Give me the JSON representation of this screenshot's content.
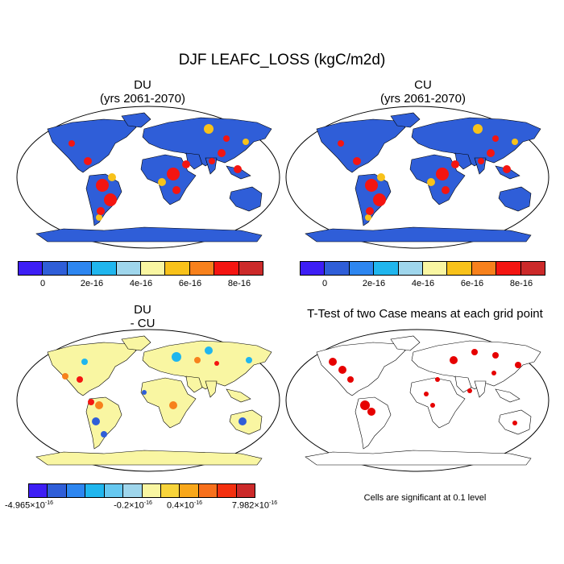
{
  "main_title": "DJF LEAFC_LOSS (kgC/m2d)",
  "panels": {
    "du": {
      "title": "DU",
      "subtitle": "(yrs 2061-2070)"
    },
    "cu": {
      "title": "CU",
      "subtitle": "(yrs 2061-2070)"
    },
    "diff": {
      "title": "DU",
      "subtitle": "- CU"
    },
    "ttest": {
      "title": "T-Test of two Case means at each grid point",
      "note": "Cells are significant at 0.1 level"
    }
  },
  "colorbar_top": {
    "colors": [
      "#3d1ef5",
      "#2f5ed8",
      "#2d86f0",
      "#20b6ee",
      "#9fd6ec",
      "#f9f6a2",
      "#f8c21a",
      "#f7811c",
      "#f41511",
      "#cc2a2a"
    ],
    "labels": [
      "0",
      "2e-16",
      "4e-16",
      "6e-16",
      "8e-16"
    ]
  },
  "colorbar_diff": {
    "colors": [
      "#3d1ef5",
      "#2f5ed8",
      "#2d86f0",
      "#20b6ee",
      "#66c8f0",
      "#9fd6ec",
      "#f9f6a2",
      "#f8d43a",
      "#f8a71a",
      "#f7701c",
      "#f4300f",
      "#cc2a2a"
    ],
    "labels": {
      "min": "-4.965",
      "neg": "-0.2",
      "pos": "0.4",
      "max": "7.982",
      "times": "×10",
      "exp": "-16"
    }
  },
  "map_colors": {
    "ocean": "#ffffff",
    "low": "#2f5ed8",
    "mid": "#f8c21a",
    "high": "#f41511",
    "diff_base": "#f9f6a2",
    "sig": "#e60000",
    "antarctica_top": "#2f5ed8",
    "antarctica_diff": "#f9f6a2"
  }
}
